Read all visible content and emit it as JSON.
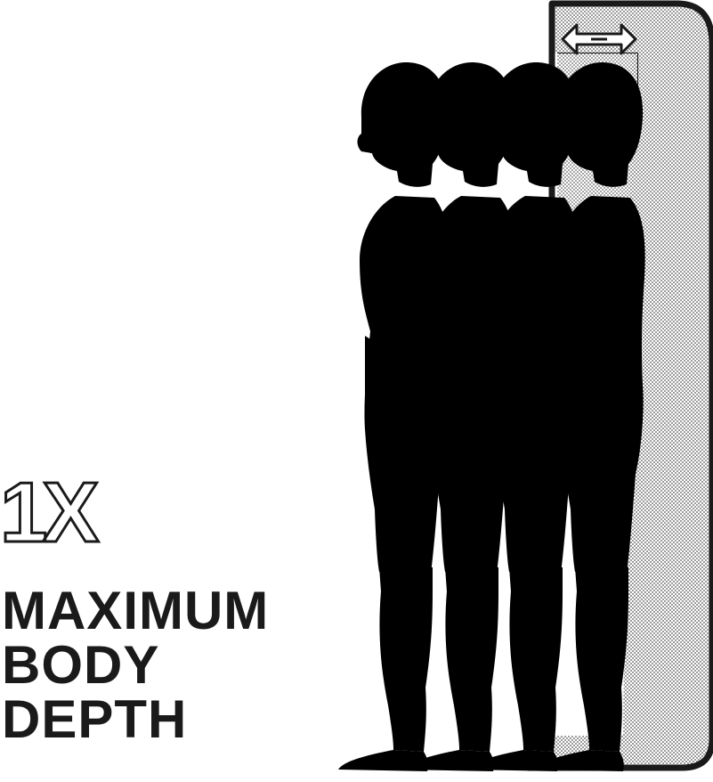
{
  "diagram": {
    "ratio_label": "1X",
    "caption_lines": [
      "MAXIMUM",
      "BODY",
      "DEPTH"
    ],
    "depth_arrow_icon": "double-arrow-icon",
    "figure_count": 4,
    "colors": {
      "ink": "#1a1a1a",
      "panel_fill": "#cfcfcf",
      "background": "#ffffff"
    }
  }
}
